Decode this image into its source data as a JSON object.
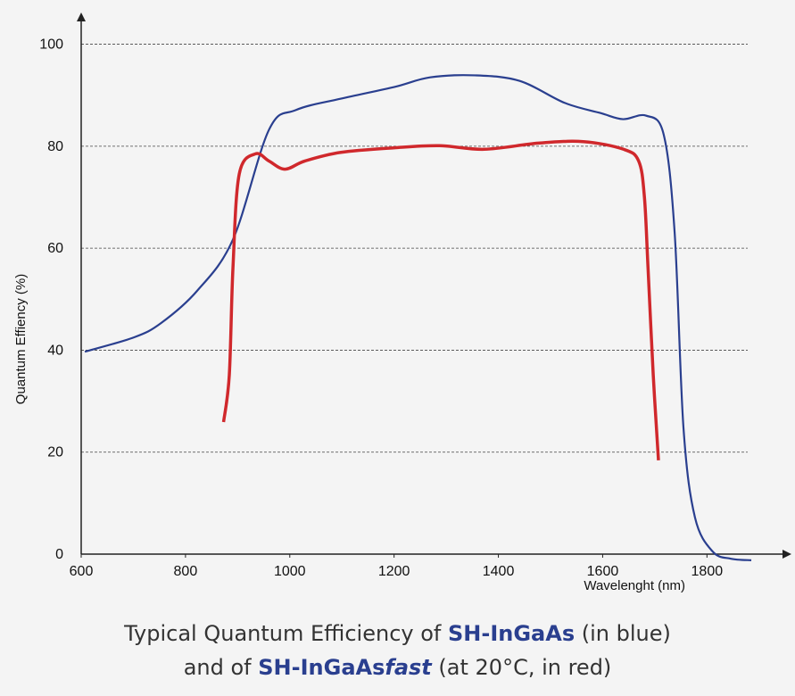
{
  "chart_data": {
    "type": "line",
    "ylabel": "Quantum Effiency (%)",
    "xlabel": "Wavelenght (nm)",
    "xlim": [
      600,
      1950
    ],
    "ylim": [
      0,
      105
    ],
    "xticks": [
      600,
      800,
      1000,
      1200,
      1400,
      1600,
      1800
    ],
    "yticks": [
      0,
      20,
      40,
      60,
      80,
      100
    ],
    "grid": true,
    "series": [
      {
        "name": "SH-InGaAs",
        "color": "#2a3f8f",
        "x": [
          607,
          701,
          753,
          822,
          891,
          960,
          1012,
          1097,
          1200,
          1269,
          1355,
          1441,
          1527,
          1596,
          1639,
          1683,
          1717,
          1738,
          1755,
          1777,
          1811,
          1846,
          1885
        ],
        "y": [
          39.7,
          42.5,
          45.3,
          51.6,
          61.7,
          83.2,
          87.1,
          89.3,
          91.6,
          93.5,
          93.9,
          92.8,
          88.5,
          86.5,
          85.3,
          86.0,
          82.3,
          63.1,
          24.7,
          7.2,
          0.5,
          -0.9,
          -1.2
        ]
      },
      {
        "name": "SH-InGaAs fast",
        "color": "#d0282c",
        "x": [
          873,
          884,
          891,
          903,
          934,
          960,
          991,
          1029,
          1098,
          1201,
          1287,
          1373,
          1477,
          1563,
          1640,
          1669,
          1680,
          1687,
          1697,
          1707
        ],
        "y": [
          25.9,
          35.1,
          56.1,
          74.5,
          78.5,
          77.1,
          75.5,
          77.1,
          78.8,
          79.7,
          80.1,
          79.4,
          80.6,
          80.9,
          79.4,
          77.1,
          70.1,
          56.1,
          35.1,
          18.4
        ]
      }
    ],
    "caption": {
      "line1": {
        "before": "Typical Quantum Efficiency of",
        "product": "SH-InGaAs",
        "after": "(in blue)"
      },
      "line2": {
        "before": "and of",
        "product": "SH-InGaAs",
        "emphasis": "fast",
        "after": "(at 20°C, in red)"
      }
    }
  }
}
